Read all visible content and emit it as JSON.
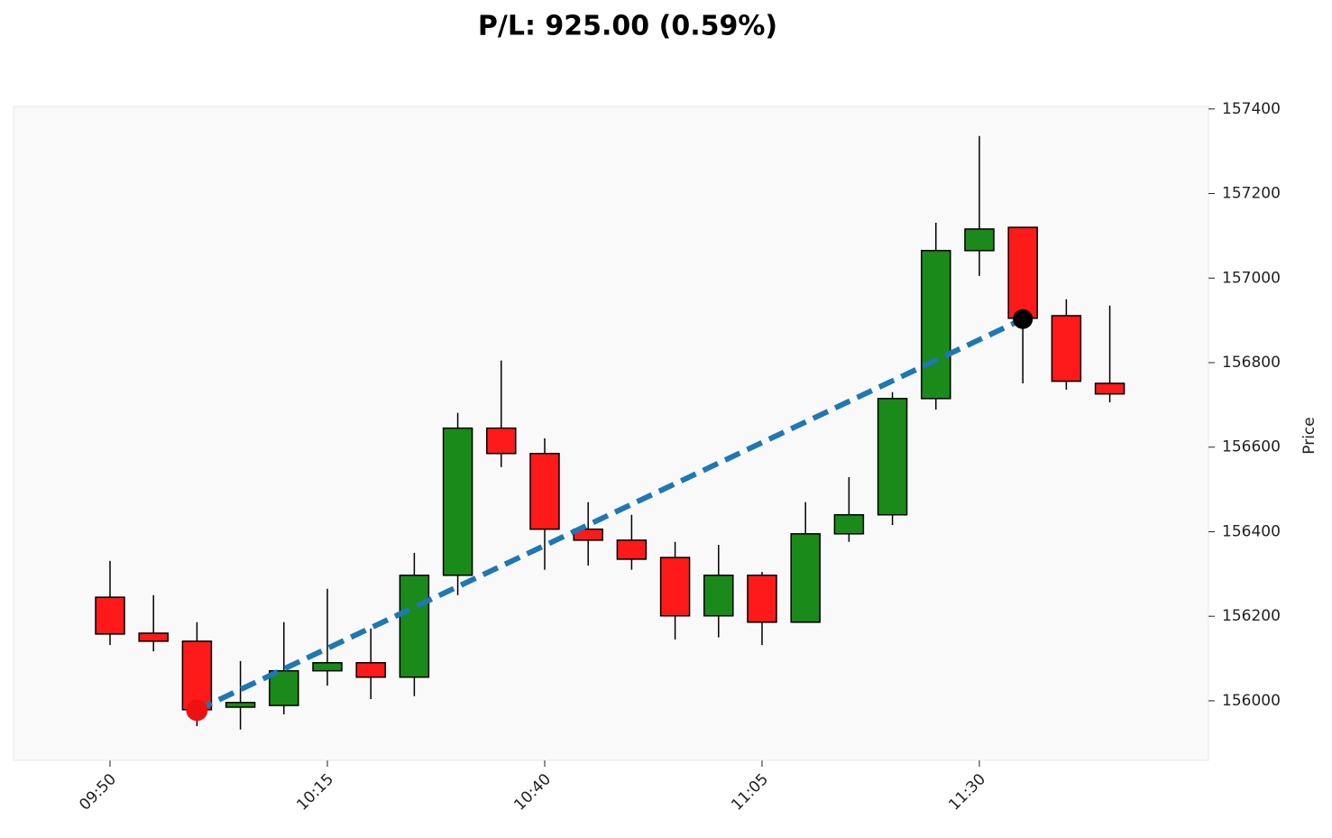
{
  "chart_data": {
    "type": "candlestick",
    "title": "P/L: 925.00 (0.59%)",
    "y_label": "Price",
    "categories": [
      "09:50",
      null,
      null,
      null,
      null,
      "10:15",
      null,
      null,
      null,
      null,
      "10:40",
      null,
      null,
      null,
      null,
      "11:05",
      null,
      null,
      null,
      null,
      "11:30",
      null,
      null,
      null
    ],
    "open": [
      156245,
      156160,
      156141,
      155985,
      155989,
      156071,
      156090,
      156056,
      156297,
      156645,
      156585,
      156406,
      156380,
      156339,
      156201,
      156297,
      156186,
      156395,
      156440,
      156715,
      157065,
      157120,
      156911,
      156751
    ],
    "high": [
      156331,
      156250,
      156186,
      156094,
      156186,
      156265,
      156171,
      156350,
      156681,
      156805,
      156621,
      156470,
      156440,
      156376,
      156369,
      156305,
      156470,
      156529,
      156730,
      157131,
      157336,
      157120,
      156950,
      156935
    ],
    "low": [
      156132,
      156117,
      155940,
      155932,
      155968,
      156036,
      156004,
      156011,
      156250,
      156553,
      156310,
      156320,
      156310,
      156145,
      156150,
      156132,
      156186,
      156376,
      156416,
      156689,
      157005,
      156751,
      156736,
      156706
    ],
    "close": [
      156158,
      156141,
      155979,
      155996,
      156071,
      156090,
      156056,
      156297,
      156645,
      156585,
      156406,
      156380,
      156335,
      156201,
      156297,
      156186,
      156395,
      156440,
      156715,
      157065,
      157116,
      156905,
      156756,
      156726
    ],
    "up_color": "#1a8a1a",
    "down_color": "#ff1a1a",
    "entry": {
      "x": 2,
      "price": 155978,
      "color": "#ee1111"
    },
    "exit": {
      "x": 21,
      "price": 156903,
      "color": "#000000"
    },
    "trade_line_color": "#1f77b4",
    "xlim": [
      -2.22,
      25.27
    ],
    "ylim": [
      155859,
      157406
    ],
    "yticks": [
      156000,
      156200,
      156400,
      156600,
      156800,
      157000,
      157200,
      157400
    ]
  }
}
